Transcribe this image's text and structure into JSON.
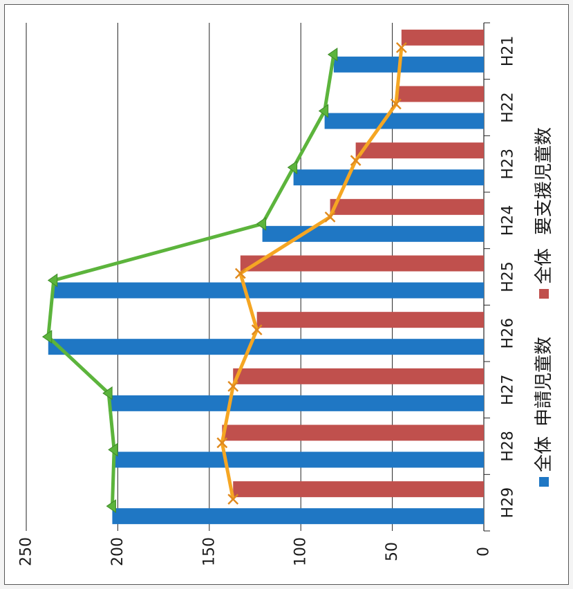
{
  "chart_data": {
    "type": "bar",
    "orientation": "rotated-90-clockwise",
    "categories": [
      "H21",
      "H22",
      "H23",
      "H24",
      "H25",
      "H26",
      "H27",
      "H28",
      "H29"
    ],
    "series": [
      {
        "name": "全体",
        "kind": "bar",
        "values": [
          82,
          87,
          104,
          121,
          235,
          238,
          205,
          202,
          203
        ],
        "color": "#1f77c4"
      },
      {
        "name": "申請児童数",
        "kind": "line",
        "values": [
          82,
          87,
          104,
          121,
          235,
          238,
          205,
          202,
          203
        ],
        "color": "#5cb43c"
      },
      {
        "name": "全体",
        "kind": "bar",
        "values": [
          45,
          48,
          70,
          84,
          133,
          124,
          137,
          143,
          137
        ],
        "color": "#c0504d"
      },
      {
        "name": "要支援児童数",
        "kind": "line",
        "values": [
          45,
          48,
          70,
          84,
          133,
          124,
          137,
          143,
          137
        ],
        "color": "#f5a623"
      }
    ],
    "y_ticks": [
      0,
      50,
      100,
      150,
      200,
      250
    ],
    "ylim": [
      0,
      250
    ],
    "grid": true,
    "legend_position": "bottom",
    "legend": [
      {
        "label": "全体",
        "color": "#1f77c4"
      },
      {
        "label": "申請児童数",
        "color": ""
      },
      {
        "label": "全体",
        "color": "#c0504d"
      },
      {
        "label": "要支援児童数",
        "color": ""
      }
    ]
  }
}
